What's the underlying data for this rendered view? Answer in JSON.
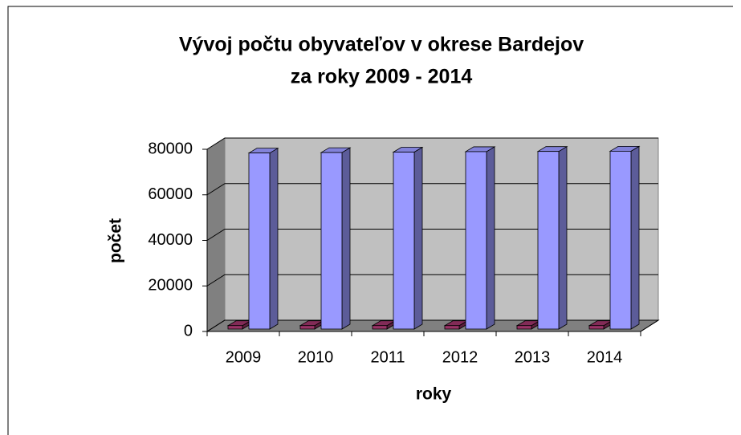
{
  "chart_data": {
    "type": "bar3d",
    "title": [
      "Vývoj počtu obyvateľov v okrese Bardejov",
      "za roky 2009 - 2014"
    ],
    "x_label": "roky",
    "y_label": "počet",
    "categories": [
      "2009",
      "2010",
      "2011",
      "2012",
      "2013",
      "2014"
    ],
    "series": [
      {
        "color": "#993366",
        "values": [
          1500,
          1500,
          1500,
          1500,
          1500,
          1500
        ]
      },
      {
        "color": "#9999ff",
        "values": [
          77300,
          77500,
          77700,
          77900,
          78000,
          78100
        ]
      }
    ],
    "ylim": [
      0,
      80000
    ],
    "yticks": [
      0,
      20000,
      40000,
      60000,
      80000
    ],
    "grid": true
  }
}
